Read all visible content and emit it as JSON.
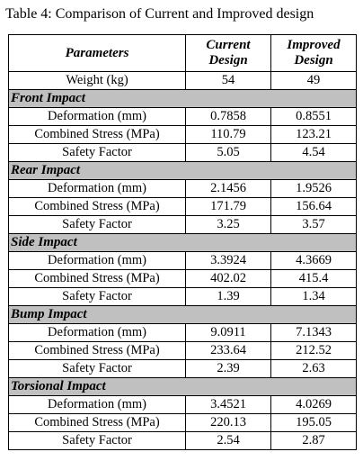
{
  "caption": "Table 4: Comparison of Current and Improved design",
  "header": {
    "parameters": "Parameters",
    "current": [
      "Current",
      "Design"
    ],
    "improved": [
      "Improved",
      "Design"
    ]
  },
  "rows": [
    {
      "type": "data",
      "param": "Weight (kg)",
      "current": "54",
      "improved": "49"
    },
    {
      "type": "section",
      "title": "Front Impact"
    },
    {
      "type": "data",
      "param": "Deformation (mm)",
      "current": "0.7858",
      "improved": "0.8551"
    },
    {
      "type": "data",
      "param": "Combined Stress (MPa)",
      "current": "110.79",
      "improved": "123.21"
    },
    {
      "type": "data",
      "param": "Safety Factor",
      "current": "5.05",
      "improved": "4.54"
    },
    {
      "type": "section",
      "title": "Rear Impact"
    },
    {
      "type": "data",
      "param": "Deformation (mm)",
      "current": "2.1456",
      "improved": "1.9526"
    },
    {
      "type": "data",
      "param": "Combined Stress (MPa)",
      "current": "171.79",
      "improved": "156.64"
    },
    {
      "type": "data",
      "param": "Safety Factor",
      "current": "3.25",
      "improved": "3.57"
    },
    {
      "type": "section",
      "title": "Side Impact"
    },
    {
      "type": "data",
      "param": "Deformation (mm)",
      "current": "3.3924",
      "improved": "4.3669"
    },
    {
      "type": "data",
      "param": "Combined Stress (MPa)",
      "current": "402.02",
      "improved": "415.4"
    },
    {
      "type": "data",
      "param": "Safety Factor",
      "current": "1.39",
      "improved": "1.34"
    },
    {
      "type": "section",
      "title": "Bump Impact"
    },
    {
      "type": "data",
      "param": "Deformation (mm)",
      "current": "9.0911",
      "improved": "7.1343"
    },
    {
      "type": "data",
      "param": "Combined Stress (MPa)",
      "current": "233.64",
      "improved": "212.52"
    },
    {
      "type": "data",
      "param": "Safety Factor",
      "current": "2.39",
      "improved": "2.63"
    },
    {
      "type": "section",
      "title": "Torsional Impact"
    },
    {
      "type": "data",
      "param": "Deformation (mm)",
      "current": "3.4521",
      "improved": "4.0269"
    },
    {
      "type": "data",
      "param": "Combined Stress (MPa)",
      "current": "220.13",
      "improved": "195.05"
    },
    {
      "type": "data",
      "param": "Safety Factor",
      "current": "2.54",
      "improved": "2.87"
    }
  ],
  "colors": {
    "section_bg": "#c0c0c0",
    "border": "#000000",
    "text": "#000000"
  }
}
